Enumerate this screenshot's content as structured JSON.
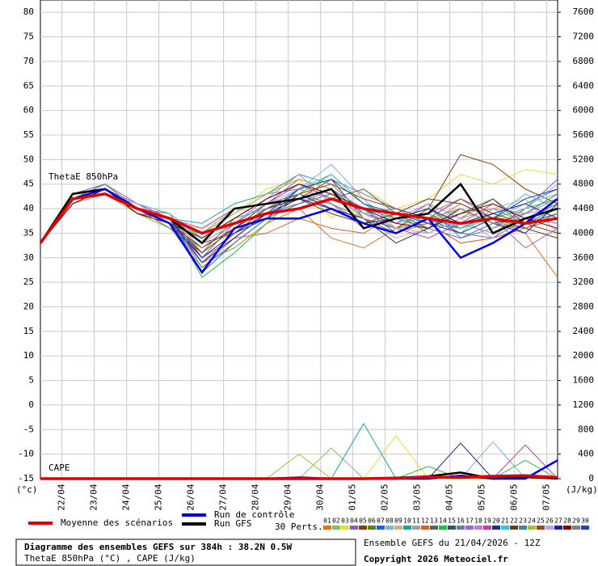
{
  "chart_data": {
    "type": "line",
    "annotations": {
      "theta": "ThetaE 850hPa",
      "cape": "CAPE",
      "yunit": "(°c)",
      "y2unit": "(J/kg)"
    },
    "ylim": [
      -15,
      82.5
    ],
    "yticks": [
      -15,
      -10,
      -5,
      0,
      5,
      10,
      15,
      20,
      25,
      30,
      35,
      40,
      45,
      50,
      55,
      60,
      65,
      70,
      75,
      80
    ],
    "y2lim": [
      0,
      7800
    ],
    "y2ticks": [
      0,
      400,
      800,
      1200,
      1600,
      2000,
      2400,
      2800,
      3200,
      3600,
      4000,
      4400,
      4800,
      5200,
      5600,
      6000,
      6400,
      6800,
      7200,
      7600
    ],
    "xlim": [
      0,
      384
    ],
    "xticks": [
      {
        "value": 16,
        "label": "22/04"
      },
      {
        "value": 40,
        "label": "23/04"
      },
      {
        "value": 64,
        "label": "24/04"
      },
      {
        "value": 88,
        "label": "25/04"
      },
      {
        "value": 112,
        "label": "26/04"
      },
      {
        "value": 136,
        "label": "27/04"
      },
      {
        "value": 160,
        "label": "28/04"
      },
      {
        "value": 184,
        "label": "29/04"
      },
      {
        "value": 208,
        "label": "30/04"
      },
      {
        "value": 232,
        "label": "01/05"
      },
      {
        "value": 256,
        "label": "02/05"
      },
      {
        "value": 280,
        "label": "03/05"
      },
      {
        "value": 304,
        "label": "04/05"
      },
      {
        "value": 328,
        "label": "05/05"
      },
      {
        "value": 352,
        "label": "06/05"
      },
      {
        "value": 376,
        "label": "07/05"
      }
    ],
    "grid": true,
    "x": [
      0,
      24,
      48,
      72,
      96,
      120,
      144,
      168,
      192,
      216,
      240,
      264,
      288,
      312,
      336,
      360,
      384
    ],
    "perts_label": "30 Perts.",
    "series": [
      {
        "name": "01",
        "color": "#e07020",
        "values": [
          33,
          42,
          43,
          39,
          37,
          29,
          32,
          37,
          40,
          34,
          32,
          36,
          37,
          41,
          38,
          35,
          26
        ]
      },
      {
        "name": "02",
        "color": "#80c060",
        "values": [
          33,
          41,
          44,
          40,
          38,
          34,
          38,
          42,
          45,
          43,
          40,
          36,
          39,
          35,
          40,
          37,
          39
        ]
      },
      {
        "name": "03",
        "color": "#e8d840",
        "values": [
          33,
          42,
          43,
          41,
          37,
          36,
          39,
          44,
          46,
          38,
          44,
          40,
          42,
          47,
          45,
          48,
          47
        ]
      },
      {
        "name": "04",
        "color": "#8060c0",
        "values": [
          33,
          43,
          45,
          40,
          39,
          30,
          37,
          41,
          46,
          44,
          39,
          37,
          41,
          34,
          36,
          40,
          46
        ]
      },
      {
        "name": "05",
        "color": "#804000",
        "values": [
          33,
          42,
          44,
          39,
          38,
          33,
          35,
          40,
          42,
          46,
          38,
          36,
          40,
          51,
          49,
          44,
          41
        ]
      },
      {
        "name": "06",
        "color": "#608020",
        "values": [
          33,
          42,
          43,
          40,
          36,
          31,
          38,
          40,
          43,
          41,
          37,
          39,
          35,
          38,
          42,
          36,
          38
        ]
      },
      {
        "name": "07",
        "color": "#2060e0",
        "values": [
          33,
          41,
          44,
          41,
          38,
          27,
          33,
          38,
          44,
          42,
          40,
          35,
          38,
          36,
          39,
          37,
          40
        ]
      },
      {
        "name": "08",
        "color": "#80b0e0",
        "values": [
          33,
          42,
          44,
          40,
          37,
          35,
          40,
          39,
          44,
          49,
          42,
          36,
          38,
          35,
          38,
          41,
          43
        ]
      },
      {
        "name": "09",
        "color": "#d0b080",
        "values": [
          33,
          43,
          44,
          39,
          36,
          28,
          34,
          40,
          41,
          43,
          38,
          34,
          36,
          39,
          40,
          42,
          35
        ]
      },
      {
        "name": "10",
        "color": "#20a0a0",
        "values": [
          33,
          42,
          45,
          40,
          38,
          37,
          41,
          43,
          47,
          45,
          39,
          40,
          37,
          36,
          39,
          41,
          44
        ]
      },
      {
        "name": "11",
        "color": "#a0a0a0",
        "values": [
          33,
          41,
          43,
          39,
          38,
          32,
          36,
          40,
          42,
          41,
          37,
          38,
          40,
          37,
          35,
          39,
          40
        ]
      },
      {
        "name": "12",
        "color": "#e06020",
        "values": [
          33,
          42,
          43,
          40,
          39,
          30,
          34,
          35,
          38,
          36,
          35,
          39,
          37,
          33,
          34,
          36,
          38
        ]
      },
      {
        "name": "13",
        "color": "#606060",
        "values": [
          33,
          42,
          44,
          41,
          37,
          34,
          38,
          42,
          45,
          42,
          44,
          39,
          36,
          40,
          37,
          38,
          41
        ]
      },
      {
        "name": "14",
        "color": "#20c040",
        "values": [
          33,
          43,
          44,
          40,
          38,
          26,
          31,
          37,
          43,
          47,
          41,
          38,
          40,
          36,
          38,
          40,
          42
        ]
      },
      {
        "name": "15",
        "color": "#405060",
        "values": [
          33,
          42,
          43,
          39,
          37,
          31,
          36,
          41,
          42,
          40,
          38,
          35,
          37,
          39,
          42,
          37,
          39
        ]
      },
      {
        "name": "16",
        "color": "#6080a0",
        "values": [
          33,
          41,
          44,
          40,
          36,
          35,
          39,
          43,
          44,
          46,
          43,
          40,
          38,
          35,
          34,
          38,
          37
        ]
      },
      {
        "name": "17",
        "color": "#a060e0",
        "values": [
          33,
          42,
          45,
          41,
          38,
          29,
          35,
          39,
          41,
          44,
          40,
          37,
          39,
          42,
          38,
          32,
          36
        ]
      },
      {
        "name": "18",
        "color": "#c080c0",
        "values": [
          33,
          42,
          43,
          40,
          37,
          33,
          37,
          42,
          47,
          41,
          36,
          38,
          41,
          38,
          40,
          39,
          42
        ]
      },
      {
        "name": "19",
        "color": "#c040a0",
        "values": [
          33,
          43,
          44,
          39,
          38,
          36,
          40,
          41,
          45,
          42,
          39,
          36,
          34,
          37,
          41,
          38,
          40
        ]
      },
      {
        "name": "20",
        "color": "#203080",
        "values": [
          33,
          42,
          44,
          40,
          37,
          30,
          35,
          38,
          43,
          40,
          38,
          33,
          36,
          40,
          37,
          35,
          41
        ]
      },
      {
        "name": "21",
        "color": "#40c0e0",
        "values": [
          33,
          42,
          43,
          41,
          39,
          34,
          38,
          40,
          44,
          47,
          41,
          37,
          39,
          36,
          38,
          43,
          40
        ]
      },
      {
        "name": "22",
        "color": "#604020",
        "values": [
          33,
          41,
          44,
          40,
          37,
          32,
          36,
          40,
          42,
          39,
          37,
          39,
          42,
          41,
          38,
          36,
          34
        ]
      },
      {
        "name": "23",
        "color": "#4080a0",
        "values": [
          33,
          42,
          45,
          40,
          38,
          28,
          33,
          38,
          41,
          43,
          40,
          38,
          36,
          34,
          37,
          39,
          43
        ]
      },
      {
        "name": "24",
        "color": "#a0c040",
        "values": [
          33,
          42,
          43,
          39,
          36,
          35,
          39,
          43,
          46,
          44,
          38,
          35,
          37,
          40,
          36,
          38,
          40
        ]
      },
      {
        "name": "25",
        "color": "#a04020",
        "values": [
          33,
          43,
          44,
          40,
          38,
          31,
          36,
          40,
          43,
          45,
          42,
          40,
          38,
          42,
          39,
          37,
          35
        ]
      },
      {
        "name": "26",
        "color": "#c0a0e0",
        "values": [
          33,
          42,
          44,
          41,
          37,
          33,
          37,
          41,
          44,
          42,
          39,
          36,
          35,
          38,
          34,
          40,
          45
        ]
      },
      {
        "name": "27",
        "color": "#2020a0",
        "values": [
          33,
          42,
          43,
          40,
          38,
          29,
          34,
          39,
          42,
          40,
          37,
          38,
          40,
          37,
          39,
          41,
          38
        ]
      },
      {
        "name": "28",
        "color": "#800000",
        "values": [
          33,
          41,
          44,
          39,
          37,
          34,
          38,
          42,
          45,
          43,
          40,
          37,
          36,
          39,
          41,
          38,
          36
        ]
      },
      {
        "name": "29",
        "color": "#808080",
        "values": [
          33,
          42,
          45,
          40,
          36,
          32,
          37,
          41,
          43,
          41,
          38,
          35,
          38,
          40,
          37,
          36,
          39
        ]
      },
      {
        "name": "30",
        "color": "#2040c0",
        "values": [
          33,
          42,
          43,
          40,
          38,
          30,
          35,
          39,
          44,
          46,
          41,
          39,
          37,
          35,
          38,
          42,
          44
        ]
      },
      {
        "name": "Run GFS",
        "color": "#000000",
        "width": 2.5,
        "values": [
          33,
          43,
          44,
          40,
          38,
          33,
          40,
          41,
          42,
          44,
          36,
          38,
          39,
          45,
          35,
          38,
          40
        ]
      },
      {
        "name": "Run de contrôle",
        "color": "#0000e0",
        "width": 2.5,
        "values": [
          33,
          42,
          44,
          40,
          37,
          27,
          36,
          38,
          38,
          40,
          37,
          35,
          38,
          30,
          33,
          37,
          42
        ]
      },
      {
        "name": "Moyenne des scénarios",
        "color": "#e00000",
        "width": 3.5,
        "values": [
          33,
          42,
          43,
          40,
          38,
          35,
          37,
          39,
          40,
          42,
          40,
          39,
          38,
          37,
          38,
          37,
          38
        ]
      },
      {
        "name": "02",
        "color": "#80c060",
        "axis": "y2",
        "values": [
          0,
          0,
          0,
          0,
          0,
          0,
          0,
          0,
          0,
          500,
          0,
          0,
          0,
          0,
          0,
          0,
          0
        ]
      },
      {
        "name": "03",
        "color": "#e8d840",
        "axis": "y2",
        "values": [
          0,
          0,
          0,
          0,
          0,
          0,
          0,
          0,
          0,
          0,
          0,
          700,
          0,
          0,
          0,
          0,
          0
        ]
      },
      {
        "name": "08",
        "color": "#80b0e0",
        "axis": "y2",
        "values": [
          0,
          0,
          0,
          0,
          0,
          0,
          0,
          0,
          0,
          0,
          0,
          0,
          0,
          0,
          600,
          0,
          0
        ]
      },
      {
        "name": "10",
        "color": "#20a0a0",
        "axis": "y2",
        "values": [
          0,
          0,
          0,
          0,
          0,
          0,
          0,
          0,
          0,
          0,
          900,
          0,
          0,
          0,
          0,
          0,
          0
        ]
      },
      {
        "name": "14",
        "color": "#20c040",
        "axis": "y2",
        "values": [
          0,
          0,
          0,
          0,
          0,
          0,
          0,
          0,
          0,
          0,
          0,
          0,
          200,
          0,
          0,
          300,
          0
        ]
      },
      {
        "name": "19",
        "color": "#c040a0",
        "axis": "y2",
        "values": [
          0,
          0,
          0,
          0,
          0,
          0,
          0,
          0,
          0,
          0,
          0,
          0,
          0,
          0,
          0,
          550,
          0
        ]
      },
      {
        "name": "20",
        "color": "#203080",
        "axis": "y2",
        "values": [
          0,
          0,
          0,
          0,
          0,
          0,
          0,
          0,
          0,
          0,
          0,
          0,
          0,
          580,
          0,
          0,
          0
        ]
      },
      {
        "name": "24",
        "color": "#a0c040",
        "axis": "y2",
        "values": [
          0,
          0,
          0,
          0,
          0,
          0,
          0,
          0,
          400,
          0,
          0,
          0,
          0,
          0,
          0,
          0,
          0
        ]
      },
      {
        "name": "Run GFS",
        "color": "#000000",
        "axis": "y2",
        "width": 2.5,
        "values": [
          0,
          0,
          0,
          0,
          0,
          0,
          0,
          0,
          0,
          0,
          0,
          0,
          40,
          100,
          0,
          30,
          0
        ]
      },
      {
        "name": "Run de contrôle",
        "color": "#0000e0",
        "axis": "y2",
        "width": 2.5,
        "values": [
          0,
          0,
          0,
          0,
          0,
          0,
          0,
          0,
          20,
          0,
          0,
          0,
          0,
          50,
          0,
          0,
          300
        ]
      },
      {
        "name": "Moyenne des scénarios",
        "color": "#e00000",
        "axis": "y2",
        "width": 3.5,
        "values": [
          0,
          0,
          0,
          0,
          0,
          0,
          0,
          0,
          0,
          0,
          0,
          10,
          30,
          20,
          40,
          50,
          20
        ]
      }
    ]
  },
  "footer": {
    "title": "Diagramme des ensembles GEFS sur 384h : 38.2N 0.5W",
    "subtitle": "ThetaE 850hPa (°C) , CAPE (J/kg)",
    "run": "Ensemble GEFS du 21/04/2026 - 12Z",
    "copyright": "Copyright 2026 Meteociel.fr"
  }
}
